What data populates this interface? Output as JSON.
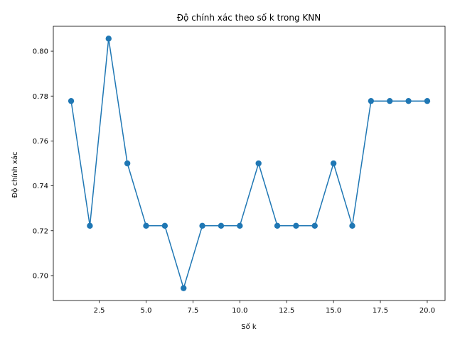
{
  "chart_data": {
    "type": "line",
    "title": "Độ chính xác theo số k trong KNN",
    "xlabel": "Số k",
    "ylabel": "Độ chính xác",
    "x": [
      1,
      2,
      3,
      4,
      5,
      6,
      7,
      8,
      9,
      10,
      11,
      12,
      13,
      14,
      15,
      16,
      17,
      18,
      19,
      20
    ],
    "series": [
      {
        "values": [
          0.7778,
          0.7222,
          0.8056,
          0.75,
          0.7222,
          0.7222,
          0.6944,
          0.7222,
          0.7222,
          0.7222,
          0.75,
          0.7222,
          0.7222,
          0.7222,
          0.75,
          0.7222,
          0.7778,
          0.7778,
          0.7778,
          0.7778
        ],
        "color": "#1f77b4",
        "marker": "circle"
      }
    ],
    "xlim": [
      0.05,
      20.95
    ],
    "ylim": [
      0.6889,
      0.8111
    ],
    "xticks": [
      2.5,
      5.0,
      7.5,
      10.0,
      12.5,
      15.0,
      17.5,
      20.0
    ],
    "xtick_labels": [
      "2.5",
      "5.0",
      "7.5",
      "10.0",
      "12.5",
      "15.0",
      "17.5",
      "20.0"
    ],
    "yticks": [
      0.7,
      0.72,
      0.74,
      0.76,
      0.78,
      0.8
    ],
    "ytick_labels": [
      "0.70",
      "0.72",
      "0.74",
      "0.76",
      "0.78",
      "0.80"
    ],
    "grid": false,
    "legend": "none"
  }
}
